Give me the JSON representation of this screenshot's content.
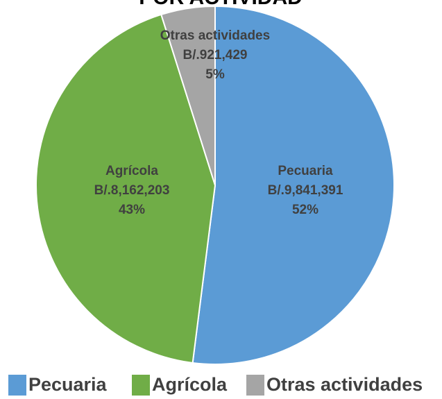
{
  "chart_data": {
    "type": "pie",
    "title": "POR ACTIVIDAD",
    "categories": [
      "Pecuaria",
      "Agrícola",
      "Otras actividades"
    ],
    "values": [
      9841391,
      8162203,
      921429
    ],
    "value_labels": [
      "B/.9,841,391",
      "B/.8,162,203",
      "B/.921,429"
    ],
    "percent_labels": [
      "52%",
      "43%",
      "5%"
    ],
    "colors": [
      "#5b9bd5",
      "#70ad47",
      "#a5a5a5"
    ],
    "legend": "bottom"
  }
}
